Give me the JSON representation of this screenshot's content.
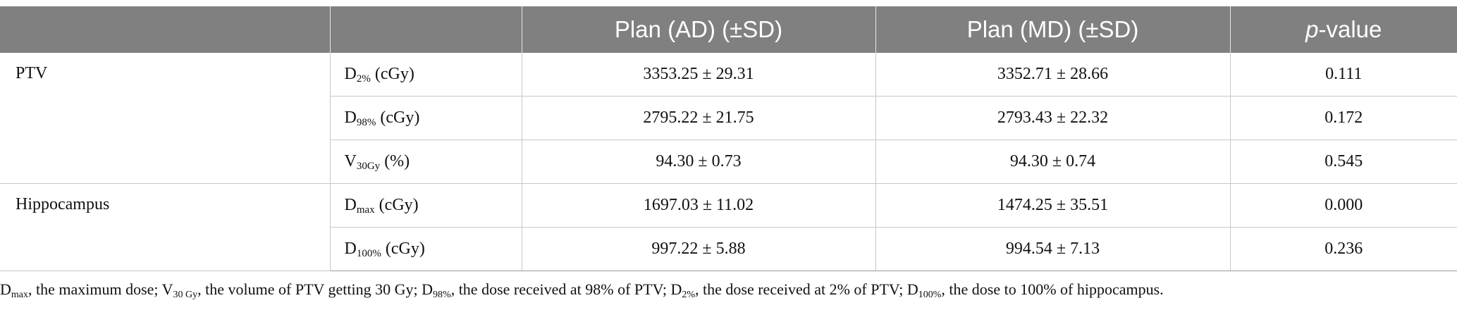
{
  "table": {
    "headers": {
      "c0": "",
      "c1": "",
      "c2": "Plan (AD) (±SD)",
      "c3": "Plan (MD) (±SD)",
      "c4_italic": "p",
      "c4_rest": "-value"
    },
    "groups": {
      "ptv": "PTV",
      "hippocampus": "Hippocampus"
    },
    "rows": [
      {
        "sym": "D",
        "sub": "2%",
        "unit": " (cGy)",
        "ad": "3353.25 ± 29.31",
        "md": "3352.71 ± 28.66",
        "p": "0.111"
      },
      {
        "sym": "D",
        "sub": "98%",
        "unit": " (cGy)",
        "ad": "2795.22 ± 21.75",
        "md": "2793.43 ± 22.32",
        "p": "0.172"
      },
      {
        "sym": "V",
        "sub": "30Gy",
        "unit": " (%)",
        "ad": "94.30 ± 0.73",
        "md": "94.30 ± 0.74",
        "p": "0.545"
      },
      {
        "sym": "D",
        "sub": "max",
        "unit": " (cGy)",
        "ad": "1697.03 ± 11.02",
        "md": "1474.25 ± 35.51",
        "p": "0.000"
      },
      {
        "sym": "D",
        "sub": "100%",
        "unit": " (cGy)",
        "ad": "997.22 ± 5.88",
        "md": "994.54 ± 7.13",
        "p": "0.236"
      }
    ]
  },
  "footnote": {
    "p1_sym": "D",
    "p1_sub": "max",
    "p1_text": ", the maximum dose; ",
    "p2_sym": "V",
    "p2_sub": "30 Gy",
    "p2_text": ", the volume of PTV getting 30 Gy; ",
    "p3_sym": "D",
    "p3_sub": "98%",
    "p3_text": ", the dose received at 98% of PTV; ",
    "p4_sym": "D",
    "p4_sub": "2%",
    "p4_text": ", the dose received at 2% of PTV; ",
    "p5_sym": "D",
    "p5_sub": "100%",
    "p5_text": ", the dose to 100% of hippocampus."
  }
}
